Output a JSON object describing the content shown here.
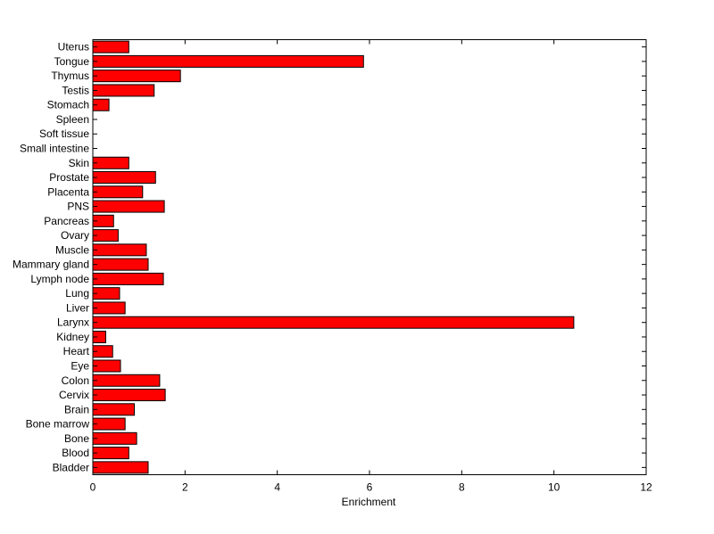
{
  "chart_data": {
    "type": "bar",
    "orientation": "horizontal",
    "title": "",
    "xlabel": "Enrichment",
    "ylabel": "",
    "xlim": [
      0,
      12
    ],
    "x_ticks": [
      0,
      2,
      4,
      6,
      8,
      10,
      12
    ],
    "grid": false,
    "legend": "none",
    "bar_color": "#ff0000",
    "bar_edge_color": "#000000",
    "categories": [
      "Uterus",
      "Tongue",
      "Thymus",
      "Testis",
      "Stomach",
      "Spleen",
      "Soft tissue",
      "Small intestine",
      "Skin",
      "Prostate",
      "Placenta",
      "PNS",
      "Pancreas",
      "Ovary",
      "Muscle",
      "Mammary gland",
      "Lymph node",
      "Lung",
      "Liver",
      "Larynx",
      "Kidney",
      "Heart",
      "Eye",
      "Colon",
      "Cervix",
      "Brain",
      "Bone marrow",
      "Bone",
      "Blood",
      "Bladder"
    ],
    "values": [
      0.78,
      5.87,
      1.9,
      1.33,
      0.35,
      0,
      0,
      0,
      0.78,
      1.36,
      1.08,
      1.55,
      0.45,
      0.55,
      1.16,
      1.2,
      1.53,
      0.58,
      0.7,
      10.43,
      0.28,
      0.43,
      0.6,
      1.45,
      1.57,
      0.9,
      0.7,
      0.95,
      0.78,
      1.2
    ]
  }
}
